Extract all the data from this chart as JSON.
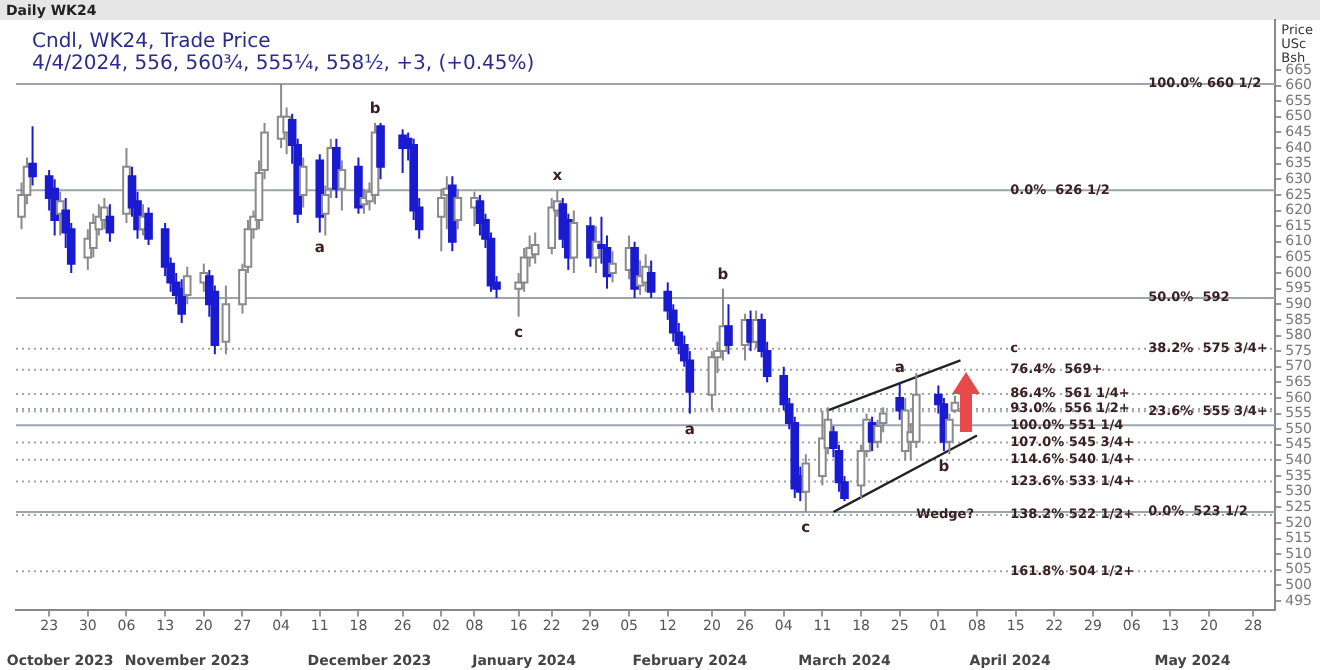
{
  "chart_data": {
    "type": "candlestick",
    "title": "Daily WK24",
    "subtitle": "Cndl, WK24, Trade Price",
    "ylabel": "Price USc Bsh",
    "annotations": [
      "4/4/2024, 556, 560¾, 555¼, 558½, +3, (+0.45%)",
      {
        "text": "b",
        "x": "2023-12-21",
        "y": 648
      },
      {
        "text": "a",
        "x": "2023-12-11",
        "y": 613
      },
      {
        "text": "c",
        "x": "2024-01-16",
        "y": 586
      },
      {
        "text": "x",
        "x": "2024-01-23",
        "y": 626.5
      },
      {
        "text": "b",
        "x": "2024-02-22",
        "y": 595
      },
      {
        "text": "a",
        "x": "2024-02-16",
        "y": 555
      },
      {
        "text": "c",
        "x": "2024-04-14",
        "y": 575.75
      },
      {
        "text": "a",
        "x": "2024-03-25",
        "y": 565
      },
      {
        "text": "b",
        "x": "2024-04-02",
        "y": 543
      },
      {
        "text": "c",
        "x": "2024-03-08",
        "y": 523.5
      },
      {
        "text": "Wedge?",
        "x": "2024-03-28",
        "y": 522.5
      },
      {
        "text": "100.0% 660 1/2",
        "x": "2024-05-09",
        "y": 660.5
      },
      {
        "text": "0.0%  626 1/2",
        "x": "2024-04-14",
        "y": 626.5
      },
      {
        "text": "50.0%  592",
        "x": "2024-05-09",
        "y": 592
      },
      {
        "text": "38.2%  575 3/4+",
        "x": "2024-05-09",
        "y": 575.75
      },
      {
        "text": "23.6%  555 3/4+",
        "x": "2024-05-09",
        "y": 555.75
      },
      {
        "text": "0.0%  523 1/2",
        "x": "2024-05-09",
        "y": 523.5
      },
      {
        "text": "76.4%  569+",
        "x": "2024-04-14",
        "y": 569
      },
      {
        "text": "86.4%  561 1/4+",
        "x": "2024-04-14",
        "y": 561.25
      },
      {
        "text": "93.0%  556 1/2+",
        "x": "2024-04-14",
        "y": 556.5
      },
      {
        "text": "100.0% 551 1/4",
        "x": "2024-04-14",
        "y": 551.25
      },
      {
        "text": "107.0% 545 3/4+",
        "x": "2024-04-14",
        "y": 545.75
      },
      {
        "text": "114.6% 540 1/4+",
        "x": "2024-04-14",
        "y": 540.25
      },
      {
        "text": "123.6% 533 1/4+",
        "x": "2024-04-14",
        "y": 533.25
      },
      {
        "text": "138.2% 522 1/2+",
        "x": "2024-04-14",
        "y": 522.5
      },
      {
        "text": "161.8% 504 1/2+",
        "x": "2024-04-14",
        "y": 504.5
      }
    ],
    "x": [
      "2023-10-18",
      "2023-10-19",
      "2023-10-20",
      "2023-10-23",
      "2023-10-24",
      "2023-10-25",
      "2023-10-26",
      "2023-10-27",
      "2023-10-30",
      "2023-10-31",
      "2023-11-01",
      "2023-11-02",
      "2023-11-03",
      "2023-11-06",
      "2023-11-07",
      "2023-11-08",
      "2023-11-09",
      "2023-11-10",
      "2023-11-13",
      "2023-11-14",
      "2023-11-15",
      "2023-11-16",
      "2023-11-17",
      "2023-11-20",
      "2023-11-21",
      "2023-11-22",
      "2023-11-24",
      "2023-11-27",
      "2023-11-28",
      "2023-11-29",
      "2023-11-30",
      "2023-12-01",
      "2023-12-04",
      "2023-12-05",
      "2023-12-06",
      "2023-12-07",
      "2023-12-08",
      "2023-12-11",
      "2023-12-12",
      "2023-12-13",
      "2023-12-14",
      "2023-12-15",
      "2023-12-18",
      "2023-12-19",
      "2023-12-20",
      "2023-12-21",
      "2023-12-22",
      "2023-12-26",
      "2023-12-27",
      "2023-12-28",
      "2023-12-29",
      "2024-01-02",
      "2024-01-03",
      "2024-01-04",
      "2024-01-05",
      "2024-01-08",
      "2024-01-09",
      "2024-01-10",
      "2024-01-11",
      "2024-01-12",
      "2024-01-16",
      "2024-01-17",
      "2024-01-18",
      "2024-01-19",
      "2024-01-22",
      "2024-01-23",
      "2024-01-24",
      "2024-01-25",
      "2024-01-26",
      "2024-01-29",
      "2024-01-30",
      "2024-01-31",
      "2024-02-01",
      "2024-02-02",
      "2024-02-05",
      "2024-02-06",
      "2024-02-07",
      "2024-02-08",
      "2024-02-09",
      "2024-02-12",
      "2024-02-13",
      "2024-02-14",
      "2024-02-15",
      "2024-02-16",
      "2024-02-20",
      "2024-02-21",
      "2024-02-22",
      "2024-02-23",
      "2024-02-26",
      "2024-02-27",
      "2024-02-28",
      "2024-02-29",
      "2024-03-01",
      "2024-03-04",
      "2024-03-05",
      "2024-03-06",
      "2024-03-07",
      "2024-03-08",
      "2024-03-11",
      "2024-03-12",
      "2024-03-13",
      "2024-03-14",
      "2024-03-15",
      "2024-03-18",
      "2024-03-19",
      "2024-03-20",
      "2024-03-21",
      "2024-03-22",
      "2024-03-25",
      "2024-03-26",
      "2024-03-27",
      "2024-03-28",
      "2024-04-01",
      "2024-04-02",
      "2024-04-03",
      "2024-04-04"
    ],
    "ohlc": [
      [
        618,
        629,
        614,
        625
      ],
      [
        625,
        637,
        622,
        634
      ],
      [
        635,
        647,
        628,
        631
      ],
      [
        631,
        633,
        620,
        624
      ],
      [
        627,
        630,
        612,
        617
      ],
      [
        619,
        626,
        612,
        623
      ],
      [
        620,
        624,
        608,
        613
      ],
      [
        614,
        616,
        600,
        603
      ],
      [
        605,
        614,
        601,
        611
      ],
      [
        608,
        619,
        605,
        616
      ],
      [
        614,
        622,
        612,
        618
      ],
      [
        617,
        624,
        614,
        621
      ],
      [
        618,
        622,
        610,
        613
      ],
      [
        619,
        640,
        616,
        634
      ],
      [
        631,
        634,
        618,
        621
      ],
      [
        623,
        626,
        611,
        614
      ],
      [
        614,
        622,
        612,
        618
      ],
      [
        619,
        621,
        609,
        611
      ],
      [
        614,
        616,
        599,
        602
      ],
      [
        603,
        605,
        594,
        597
      ],
      [
        597,
        600,
        590,
        593
      ],
      [
        595,
        598,
        584,
        587
      ],
      [
        593,
        602,
        590,
        599
      ],
      [
        597,
        603,
        594,
        600
      ],
      [
        599,
        601,
        586,
        590
      ],
      [
        594,
        596,
        574,
        577
      ],
      [
        578,
        596,
        574,
        590
      ],
      [
        590,
        603,
        587,
        601
      ],
      [
        602,
        617,
        600,
        614
      ],
      [
        614,
        620,
        611,
        618
      ],
      [
        617,
        636,
        614,
        632
      ],
      [
        633,
        648,
        630,
        645
      ],
      [
        643,
        660.5,
        640,
        650
      ],
      [
        645,
        653,
        638,
        650
      ],
      [
        649,
        651,
        635,
        641
      ],
      [
        641,
        643,
        616,
        619
      ],
      [
        625,
        637,
        621,
        634
      ],
      [
        636,
        638,
        613,
        618
      ],
      [
        619,
        628,
        612,
        625
      ],
      [
        627,
        643,
        624,
        640
      ],
      [
        640,
        643,
        624,
        627
      ],
      [
        627,
        636,
        620,
        633
      ],
      [
        634,
        637,
        619,
        621
      ],
      [
        622,
        627,
        619,
        624
      ],
      [
        623,
        629,
        620,
        626
      ],
      [
        625,
        648,
        622,
        645
      ],
      [
        647,
        648,
        630,
        634
      ],
      [
        644,
        646,
        632,
        640
      ],
      [
        643,
        645,
        636,
        640
      ],
      [
        641,
        643,
        617,
        620
      ],
      [
        621,
        624,
        611,
        614
      ],
      [
        618,
        627,
        607,
        624
      ],
      [
        625,
        631,
        614,
        627
      ],
      [
        628,
        631,
        607,
        610
      ],
      [
        617,
        627,
        614,
        624
      ],
      [
        621,
        626,
        615,
        624
      ],
      [
        623,
        625,
        612,
        616
      ],
      [
        617,
        619,
        608,
        611
      ],
      [
        611,
        613,
        594,
        596
      ],
      [
        597,
        599,
        592,
        595
      ],
      [
        595,
        600,
        586,
        597
      ],
      [
        597,
        608,
        594,
        605
      ],
      [
        605,
        612,
        602,
        608
      ],
      [
        606,
        613,
        603,
        609
      ],
      [
        608,
        624,
        606,
        621
      ],
      [
        620,
        626.5,
        618,
        623
      ],
      [
        622,
        624,
        608,
        611
      ],
      [
        617,
        619,
        601,
        605
      ],
      [
        605,
        620,
        600,
        616
      ],
      [
        615,
        618,
        602,
        605
      ],
      [
        605,
        615,
        600,
        610
      ],
      [
        609,
        618,
        603,
        608
      ],
      [
        608,
        612,
        595,
        599
      ],
      [
        600,
        607,
        597,
        603
      ],
      [
        601,
        612,
        598,
        608
      ],
      [
        608,
        610,
        592,
        595
      ],
      [
        596,
        604,
        593,
        599
      ],
      [
        597,
        606,
        594,
        602
      ],
      [
        600,
        604,
        592,
        594
      ],
      [
        594,
        597,
        585,
        588
      ],
      [
        588,
        590,
        578,
        581
      ],
      [
        581,
        584,
        574,
        577
      ],
      [
        577,
        580,
        570,
        572
      ],
      [
        572,
        575,
        555,
        562
      ],
      [
        561,
        575,
        556,
        573
      ],
      [
        573,
        578,
        568,
        575
      ],
      [
        575,
        595,
        572,
        583
      ],
      [
        583,
        590,
        574,
        577
      ],
      [
        577,
        587,
        572,
        585
      ],
      [
        585,
        588,
        575,
        578
      ],
      [
        578,
        588,
        576,
        585
      ],
      [
        585,
        587,
        573,
        575
      ],
      [
        575,
        578,
        565,
        567
      ],
      [
        567,
        570,
        556,
        558
      ],
      [
        558,
        560,
        550,
        552
      ],
      [
        552,
        554,
        528,
        531
      ],
      [
        535,
        538,
        527,
        530
      ],
      [
        530,
        542,
        523.5,
        539
      ],
      [
        535,
        556,
        532,
        547
      ],
      [
        544,
        557,
        542,
        553
      ],
      [
        549,
        551,
        541,
        544
      ],
      [
        543,
        545,
        530,
        533
      ],
      [
        533,
        535,
        527,
        528
      ],
      [
        532,
        545,
        528,
        543
      ],
      [
        543,
        555,
        541,
        553
      ],
      [
        552,
        554,
        543,
        546
      ],
      [
        546,
        553,
        544,
        551
      ],
      [
        552,
        557,
        549,
        555
      ],
      [
        560,
        565,
        553,
        556
      ],
      [
        543,
        560,
        540,
        556
      ],
      [
        546,
        552,
        540,
        549
      ],
      [
        546,
        568,
        544,
        561
      ],
      [
        561,
        564,
        555,
        558
      ],
      [
        558,
        560,
        543,
        546
      ],
      [
        546,
        555,
        542,
        553
      ],
      [
        556,
        560.75,
        555.25,
        558.5
      ]
    ],
    "colors": [
      "#ffffff",
      "#ffffff",
      "#1a1ad0",
      "#1a1ad0",
      "#1a1ad0",
      "#ffffff",
      "#1a1ad0",
      "#1a1ad0",
      "#ffffff",
      "#ffffff",
      "#ffffff",
      "#ffffff",
      "#1a1ad0",
      "#ffffff",
      "#1a1ad0",
      "#1a1ad0",
      "#ffffff",
      "#1a1ad0",
      "#1a1ad0",
      "#1a1ad0",
      "#1a1ad0",
      "#1a1ad0",
      "#ffffff",
      "#ffffff",
      "#1a1ad0",
      "#1a1ad0",
      "#ffffff",
      "#ffffff",
      "#ffffff",
      "#ffffff",
      "#ffffff",
      "#ffffff",
      "#ffffff",
      "#ffffff",
      "#1a1ad0",
      "#1a1ad0",
      "#ffffff",
      "#1a1ad0",
      "#ffffff",
      "#ffffff",
      "#1a1ad0",
      "#ffffff",
      "#1a1ad0",
      "#ffffff",
      "#ffffff",
      "#ffffff",
      "#1a1ad0",
      "#1a1ad0",
      "#1a1ad0",
      "#1a1ad0",
      "#1a1ad0",
      "#ffffff",
      "#ffffff",
      "#1a1ad0",
      "#ffffff",
      "#ffffff",
      "#1a1ad0",
      "#1a1ad0",
      "#1a1ad0",
      "#1a1ad0",
      "#ffffff",
      "#ffffff",
      "#ffffff",
      "#ffffff",
      "#ffffff",
      "#ffffff",
      "#1a1ad0",
      "#1a1ad0",
      "#ffffff",
      "#1a1ad0",
      "#ffffff",
      "#1a1ad0",
      "#1a1ad0",
      "#ffffff",
      "#ffffff",
      "#1a1ad0",
      "#ffffff",
      "#ffffff",
      "#1a1ad0",
      "#1a1ad0",
      "#1a1ad0",
      "#1a1ad0",
      "#1a1ad0",
      "#1a1ad0",
      "#ffffff",
      "#ffffff",
      "#ffffff",
      "#1a1ad0",
      "#ffffff",
      "#1a1ad0",
      "#ffffff",
      "#1a1ad0",
      "#1a1ad0",
      "#1a1ad0",
      "#1a1ad0",
      "#1a1ad0",
      "#1a1ad0",
      "#ffffff",
      "#ffffff",
      "#ffffff",
      "#1a1ad0",
      "#1a1ad0",
      "#1a1ad0",
      "#ffffff",
      "#ffffff",
      "#1a1ad0",
      "#ffffff",
      "#ffffff",
      "#1a1ad0",
      "#ffffff",
      "#ffffff",
      "#ffffff",
      "#1a1ad0",
      "#1a1ad0",
      "#ffffff",
      "#ffffff"
    ],
    "series": [
      {
        "type": "line",
        "color": "#222222",
        "x": [
          "2024-03-12",
          "2024-04-05"
        ],
        "values": [
          556,
          572
        ]
      },
      {
        "type": "line",
        "color": "#222222",
        "x": [
          "2024-03-13",
          "2024-04-08"
        ],
        "values": [
          523.5,
          548
        ]
      }
    ],
    "ref_lines": [
      {
        "axis": "y",
        "value": 660.5,
        "color": "#9aa5b0",
        "line_style": "solid"
      },
      {
        "axis": "y",
        "value": 626.5,
        "color": "#9aa5b0",
        "line_style": "solid"
      },
      {
        "axis": "y",
        "value": 592,
        "color": "#9aa5b0",
        "line_style": "solid"
      },
      {
        "axis": "y",
        "value": 575.75,
        "color": "#9aa5b0",
        "line_style": "dotted"
      },
      {
        "axis": "y",
        "value": 569,
        "color": "#9aa5b0",
        "line_style": "dotted"
      },
      {
        "axis": "y",
        "value": 561.25,
        "color": "#9aa5b0",
        "line_style": "dotted"
      },
      {
        "axis": "y",
        "value": 556.5,
        "color": "#9aa5b0",
        "line_style": "dotted"
      },
      {
        "axis": "y",
        "value": 555.75,
        "color": "#9aa5b0",
        "line_style": "dotted"
      },
      {
        "axis": "y",
        "value": 551.25,
        "color": "#9aa5b0",
        "line_style": "solid"
      },
      {
        "axis": "y",
        "value": 545.75,
        "color": "#9aa5b0",
        "line_style": "dotted"
      },
      {
        "axis": "y",
        "value": 540.25,
        "color": "#9aa5b0",
        "line_style": "dotted"
      },
      {
        "axis": "y",
        "value": 533.25,
        "color": "#9aa5b0",
        "line_style": "dotted"
      },
      {
        "axis": "y",
        "value": 523.5,
        "color": "#9aa5b0",
        "line_style": "solid"
      },
      {
        "axis": "y",
        "value": 522.5,
        "color": "#9aa5b0",
        "line_style": "dotted"
      },
      {
        "axis": "y",
        "value": 504.5,
        "color": "#9aa5b0",
        "line_style": "dotted"
      }
    ],
    "xlim": [
      "2023-10-17",
      "2024-06-01"
    ],
    "xticks": [
      {
        "value": "2023-10-23",
        "label": "23"
      },
      {
        "value": "2023-10-30",
        "label": "30"
      },
      {
        "value": "2023-11-06",
        "label": "06"
      },
      {
        "value": "2023-11-13",
        "label": "13"
      },
      {
        "value": "2023-11-20",
        "label": "20"
      },
      {
        "value": "2023-11-27",
        "label": "27"
      },
      {
        "value": "2023-12-04",
        "label": "04"
      },
      {
        "value": "2023-12-11",
        "label": "11"
      },
      {
        "value": "2023-12-18",
        "label": "18"
      },
      {
        "value": "2023-12-26",
        "label": "26"
      },
      {
        "value": "2024-01-02",
        "label": "02"
      },
      {
        "value": "2024-01-08",
        "label": "08"
      },
      {
        "value": "2024-01-16",
        "label": "16"
      },
      {
        "value": "2024-01-22",
        "label": "22"
      },
      {
        "value": "2024-01-29",
        "label": "29"
      },
      {
        "value": "2024-02-05",
        "label": "05"
      },
      {
        "value": "2024-02-12",
        "label": "12"
      },
      {
        "value": "2024-02-20",
        "label": "20"
      },
      {
        "value": "2024-02-26",
        "label": "26"
      },
      {
        "value": "2024-03-04",
        "label": "04"
      },
      {
        "value": "2024-03-11",
        "label": "11"
      },
      {
        "value": "2024-03-18",
        "label": "18"
      },
      {
        "value": "2024-03-25",
        "label": "25"
      },
      {
        "value": "2024-04-01",
        "label": "01"
      },
      {
        "value": "2024-04-08",
        "label": "08"
      },
      {
        "value": "2024-04-15",
        "label": "15"
      },
      {
        "value": "2024-04-22",
        "label": "22"
      },
      {
        "value": "2024-04-29",
        "label": "29"
      },
      {
        "value": "2024-05-06",
        "label": "06"
      },
      {
        "value": "2024-05-13",
        "label": "13"
      },
      {
        "value": "2024-05-20",
        "label": "20"
      },
      {
        "value": "2024-05-28",
        "label": "28"
      }
    ],
    "x2lim": [
      "2023-10-17",
      "2024-06-01"
    ],
    "x2ticks": [
      {
        "value": "2023-10-25",
        "label": "October 2023"
      },
      {
        "value": "2023-11-17",
        "label": "November 2023"
      },
      {
        "value": "2023-12-20",
        "label": "December 2023"
      },
      {
        "value": "2024-01-17",
        "label": "January 2024"
      },
      {
        "value": "2024-02-16",
        "label": "February 2024"
      },
      {
        "value": "2024-03-15",
        "label": "March 2024"
      },
      {
        "value": "2024-04-14",
        "label": "April 2024"
      },
      {
        "value": "2024-05-17",
        "label": "May 2024"
      }
    ],
    "ylim": [
      492,
      681
    ],
    "yticks": [
      495,
      500,
      505,
      510,
      515,
      520,
      525,
      530,
      535,
      540,
      545,
      550,
      555,
      560,
      565,
      570,
      575,
      580,
      585,
      590,
      595,
      600,
      605,
      610,
      615,
      620,
      625,
      630,
      635,
      640,
      645,
      650,
      655,
      660,
      665
    ]
  }
}
